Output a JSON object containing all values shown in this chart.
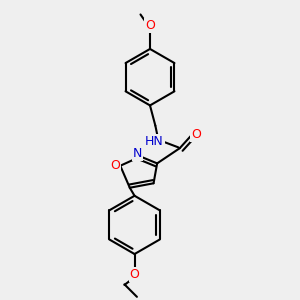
{
  "background_color": "#efefef",
  "bond_color": "#000000",
  "bond_width": 1.5,
  "atom_colors": {
    "N": "#0000cd",
    "O": "#ff0000",
    "H": "#888888",
    "C": "#000000"
  },
  "font_size": 8,
  "fig_size": [
    3.0,
    3.0
  ],
  "dpi": 100
}
